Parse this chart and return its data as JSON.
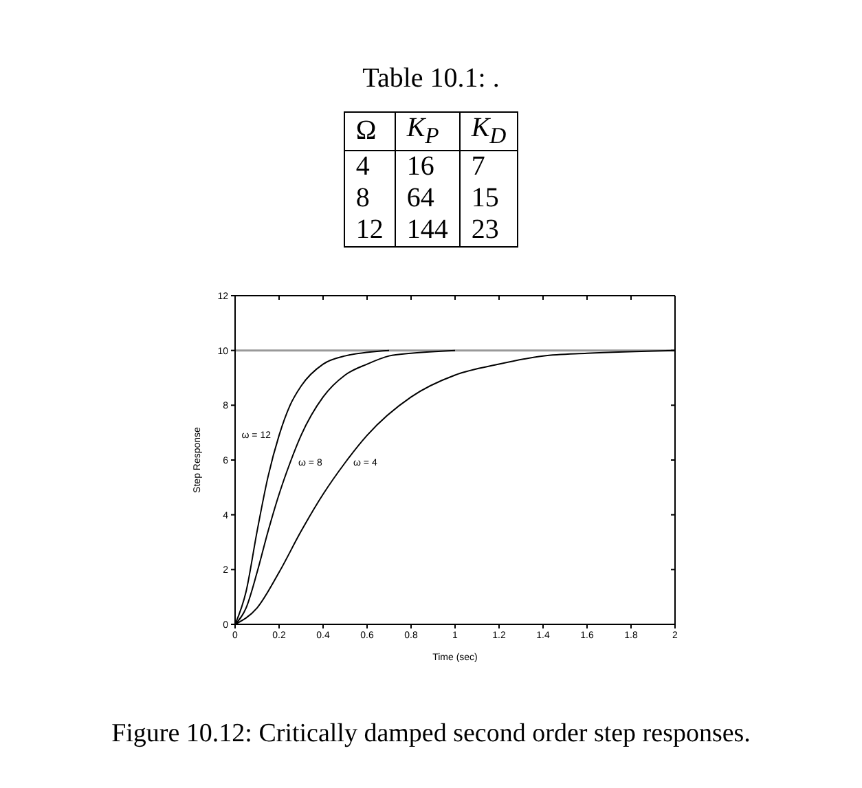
{
  "chart_data": [
    {
      "type": "other",
      "title": "Table 10.1: .",
      "categories": [
        "Ω",
        "K$_{P}$",
        "K$_{D}$"
      ],
      "cell_labels": [
        [
          "4",
          "16",
          "7"
        ],
        [
          "8",
          "64",
          "15"
        ],
        [
          "12",
          "144",
          "23"
        ]
      ]
    },
    {
      "type": "line",
      "xlabel": "Time (sec)",
      "ylabel": "Step Response",
      "xlim": [
        0,
        2
      ],
      "xticks": [
        0,
        0.2,
        0.4,
        0.6,
        0.8,
        1,
        1.2,
        1.4,
        1.6,
        1.8,
        2
      ],
      "ylim": [
        0,
        12
      ],
      "yticks": [
        0,
        2,
        4,
        6,
        8,
        10,
        12
      ],
      "marker": "none",
      "line_style": "solid",
      "ref_lines": [
        {
          "axis": "y",
          "value": 10,
          "color": "#999999"
        }
      ],
      "series": [
        {
          "name": "ω = 12",
          "color": "#000000",
          "x": [
            0,
            0.05,
            0.1,
            0.15,
            0.2,
            0.25,
            0.3,
            0.4,
            0.5,
            0.7
          ],
          "values": [
            0,
            1.2,
            3.4,
            5.4,
            6.9,
            8.0,
            8.7,
            9.5,
            9.8,
            10
          ]
        },
        {
          "name": "ω = 8",
          "color": "#000000",
          "x": [
            0,
            0.05,
            0.1,
            0.15,
            0.2,
            0.25,
            0.3,
            0.4,
            0.5,
            0.6,
            0.7,
            0.8,
            1
          ],
          "values": [
            0,
            0.6,
            1.9,
            3.4,
            4.75,
            5.9,
            6.9,
            8.3,
            9.1,
            9.5,
            9.8,
            9.9,
            10
          ]
        },
        {
          "name": "ω = 4",
          "color": "#000000",
          "x": [
            0,
            0.1,
            0.2,
            0.3,
            0.4,
            0.5,
            0.6,
            0.8,
            1,
            1.2,
            1.4,
            1.6,
            2
          ],
          "values": [
            0,
            0.6,
            1.9,
            3.4,
            4.75,
            5.9,
            6.9,
            8.3,
            9.1,
            9.5,
            9.8,
            9.9,
            10
          ]
        }
      ],
      "annotations": [
        "Figure 10.12: Critically damped second order step responses."
      ]
    }
  ]
}
